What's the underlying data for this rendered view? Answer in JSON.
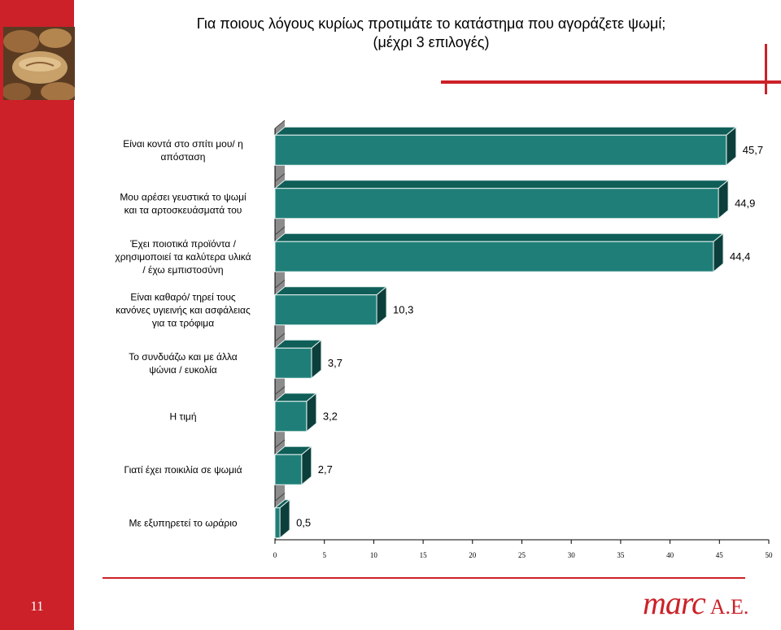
{
  "slide": {
    "title_line1": "Για ποιους λόγους κυρίως προτιμάτε το κατάστημα που αγοράζετε ψωμί;",
    "title_line2": "(μέχρι 3 επιλογές)",
    "page_number": "11"
  },
  "logo": {
    "brand": "marc",
    "suffix": "A.E."
  },
  "colors": {
    "accent": "#cc2128",
    "bar_front": "#1f7f78",
    "bar_top": "#0f5e58",
    "bar_side": "#0c3f3b",
    "bar_outline": "#e8f2f1",
    "wall": "#8c8c8c"
  },
  "chart_data": {
    "type": "bar",
    "orientation": "horizontal",
    "categories": [
      [
        "Είναι κοντά στο σπίτι μου/ η",
        "απόσταση"
      ],
      [
        "Μου αρέσει γευστικά το ψωμί",
        "και τα αρτοσκευάσματά  του"
      ],
      [
        "Έχει ποιοτικά προϊόντα /",
        "χρησιμοποιεί τα καλύτερα υλικά",
        "/ έχω  εμπιστοσύνη"
      ],
      [
        "Είναι καθαρό/ τηρεί τους",
        "κανόνες υγιεινής και ασφάλειας",
        "για τα τρόφιμα"
      ],
      [
        "Το συνδυάζω  και με άλλα",
        "ψώνια / ευκολία"
      ],
      [
        "Η τιμή"
      ],
      [
        "Γιατί έχει ποικιλία σε ψωμιά"
      ],
      [
        "Με εξυπηρετεί το ωράριο"
      ]
    ],
    "values": [
      45.7,
      44.9,
      44.4,
      10.3,
      3.7,
      3.2,
      2.7,
      0.5
    ],
    "value_labels": [
      "45,7",
      "44,9",
      "44,4",
      "10,3",
      "3,7",
      "3,2",
      "2,7",
      "0,5"
    ],
    "xlim": [
      0,
      50
    ],
    "ticks": [
      0,
      5,
      10,
      15,
      20,
      25,
      30,
      35,
      40,
      45,
      50
    ],
    "xlabel": "",
    "ylabel": "",
    "grid": false,
    "legend": "none"
  }
}
